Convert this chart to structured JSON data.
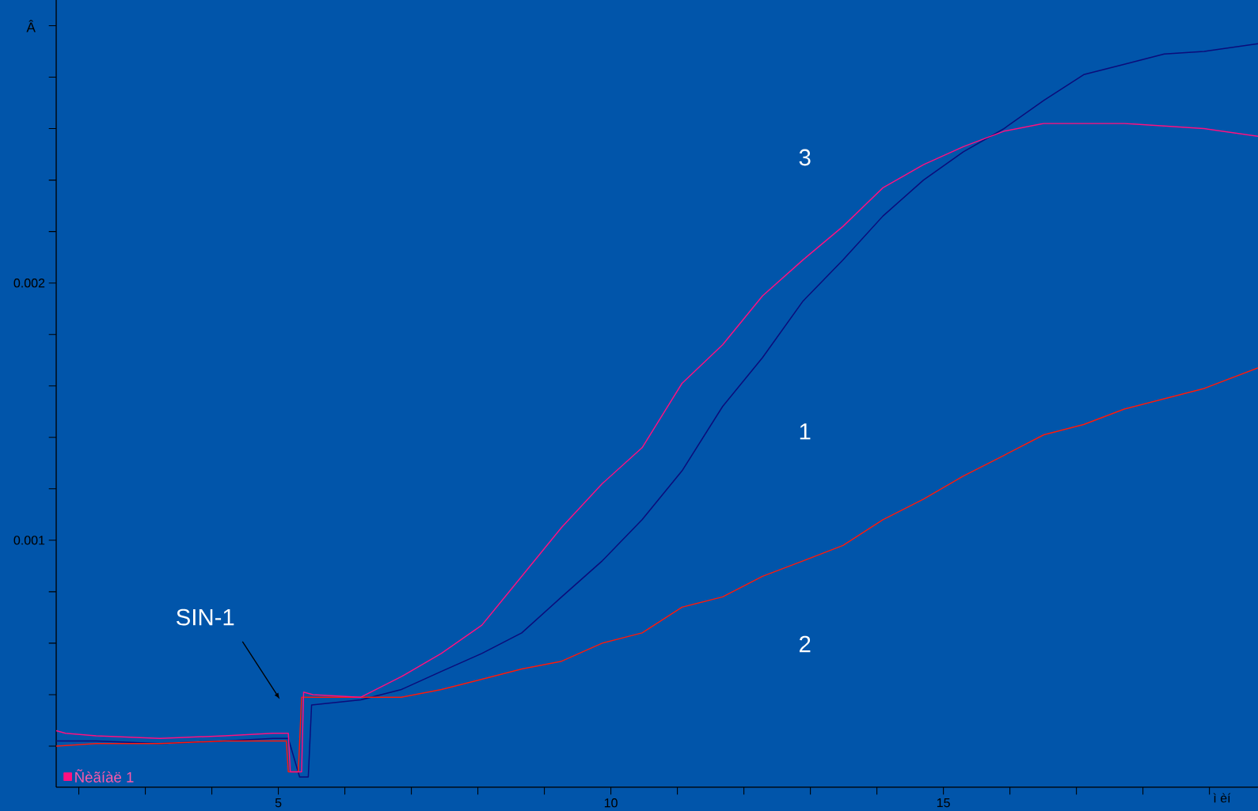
{
  "chart_data": {
    "type": "line",
    "xlabel": "ì èí",
    "ylabel": "Â",
    "xlim": [
      1.66,
      19.73
    ],
    "ylim": [
      4e-05,
      0.0031
    ],
    "xticks": [
      {
        "value": 2,
        "label": null
      },
      {
        "value": 3,
        "label": null
      },
      {
        "value": 4,
        "label": null
      },
      5,
      {
        "value": 6,
        "label": null
      },
      {
        "value": 7,
        "label": null
      },
      {
        "value": 8,
        "label": null
      },
      {
        "value": 9,
        "label": null
      },
      10,
      {
        "value": 11,
        "label": null
      },
      {
        "value": 12,
        "label": null
      },
      {
        "value": 13,
        "label": null
      },
      {
        "value": 14,
        "label": null
      },
      15,
      {
        "value": 16,
        "label": null
      },
      {
        "value": 17,
        "label": null
      },
      {
        "value": 18,
        "label": null
      },
      {
        "value": 19,
        "label": null
      }
    ],
    "yticks": [
      {
        "value": 0.0002,
        "label": null
      },
      {
        "value": 0.0004,
        "label": null
      },
      {
        "value": 0.0006,
        "label": null
      },
      {
        "value": 0.0008,
        "label": null
      },
      0.001,
      {
        "value": 0.0012,
        "label": null
      },
      {
        "value": 0.0014,
        "label": null
      },
      {
        "value": 0.0016,
        "label": null
      },
      {
        "value": 0.0018,
        "label": null
      },
      0.002,
      {
        "value": 0.0022,
        "label": null
      },
      {
        "value": 0.0024,
        "label": null
      },
      {
        "value": 0.0026,
        "label": null
      },
      {
        "value": 0.0028,
        "label": null
      },
      {
        "value": 0.003,
        "label": null
      }
    ],
    "legend": "bottom left",
    "series": [
      {
        "color": "#0c0c7a",
        "x": [
          1.66,
          2.26,
          3.22,
          4.19,
          4.92,
          5.15,
          5.32,
          5.45,
          5.5,
          6.24,
          6.85,
          7.45,
          8.06,
          8.66,
          9.26,
          9.87,
          10.47,
          11.07,
          11.68,
          12.28,
          12.89,
          13.49,
          14.09,
          14.7,
          15.3,
          15.91,
          16.51,
          17.11,
          17.72,
          18.32,
          18.92,
          19.73
        ],
        "values": [
          0.00022,
          0.00022,
          0.00021,
          0.00022,
          0.00023,
          0.00023,
          8e-05,
          8e-05,
          0.00036,
          0.00038,
          0.00042,
          0.00049,
          0.00056,
          0.00064,
          0.00078,
          0.00092,
          0.00108,
          0.00127,
          0.00152,
          0.00171,
          0.00193,
          0.00209,
          0.00226,
          0.0024,
          0.00251,
          0.0026,
          0.00271,
          0.00281,
          0.00285,
          0.00289,
          0.0029,
          0.00293
        ]
      },
      {
        "color": "#ff1a0a",
        "x": [
          1.66,
          2.26,
          3.22,
          4.19,
          4.92,
          5.12,
          5.15,
          5.3,
          5.35,
          6.24,
          6.85,
          7.45,
          8.06,
          8.66,
          9.26,
          9.87,
          10.47,
          11.07,
          11.68,
          12.28,
          12.89,
          13.49,
          14.09,
          14.7,
          15.3,
          15.91,
          16.51,
          17.11,
          17.72,
          18.32,
          18.92,
          19.73
        ],
        "values": [
          0.0002,
          0.00021,
          0.00021,
          0.00022,
          0.00022,
          0.00022,
          0.0001,
          0.0001,
          0.00039,
          0.00039,
          0.00039,
          0.00042,
          0.00046,
          0.0005,
          0.00053,
          0.0006,
          0.00064,
          0.00074,
          0.00078,
          0.00086,
          0.00092,
          0.00098,
          0.00108,
          0.00116,
          0.00125,
          0.00133,
          0.00141,
          0.00145,
          0.00151,
          0.00155,
          0.00159,
          0.00167
        ]
      },
      {
        "name": "Ñèãíàë 1",
        "color": "#ff1080",
        "x": [
          1.66,
          1.8,
          2.26,
          3.22,
          4.19,
          4.92,
          5.15,
          5.18,
          5.35,
          5.38,
          5.52,
          6.24,
          6.85,
          7.45,
          8.06,
          8.66,
          9.26,
          9.87,
          10.47,
          11.07,
          11.68,
          12.28,
          12.89,
          13.49,
          14.09,
          14.7,
          15.3,
          15.91,
          16.51,
          17.72,
          18.92,
          19.73
        ],
        "values": [
          0.00026,
          0.00025,
          0.00024,
          0.00023,
          0.00024,
          0.00025,
          0.00025,
          0.0001,
          0.0001,
          0.00041,
          0.0004,
          0.00039,
          0.00047,
          0.00056,
          0.00067,
          0.00086,
          0.00105,
          0.00122,
          0.00136,
          0.00161,
          0.00176,
          0.00195,
          0.00209,
          0.00222,
          0.00237,
          0.00246,
          0.00253,
          0.00259,
          0.00262,
          0.00262,
          0.0026,
          0.00257
        ]
      }
    ],
    "annotations": [
      "1",
      "2",
      "3",
      "SIN-1"
    ]
  }
}
